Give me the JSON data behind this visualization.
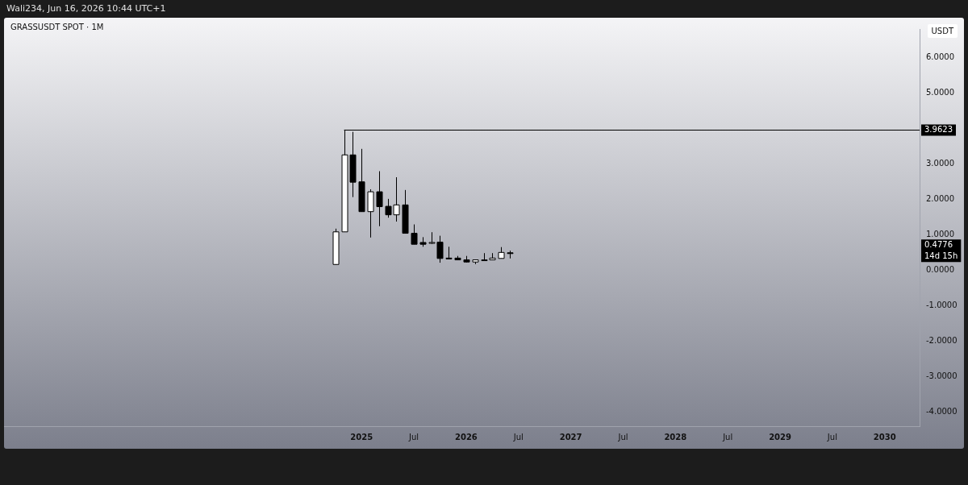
{
  "chart_data": {
    "type": "candlestick",
    "title": "GRASSUSDT SPOT · 1M",
    "ylabel": "USDT",
    "annotations": [
      "Wali234, Jun 16, 2026 10:44 UTC+1",
      "0.4776",
      "14d 15h"
    ],
    "x": [
      "2024-10",
      "2024-11",
      "2024-12",
      "2025-01",
      "2025-02",
      "2025-03",
      "2025-04",
      "2025-05",
      "2025-06",
      "2025-07",
      "2025-08",
      "2025-09",
      "2025-10",
      "2025-11",
      "2025-12",
      "2026-01",
      "2026-02",
      "2026-03",
      "2026-04",
      "2026-05",
      "2026-06"
    ],
    "ohlc": [
      [
        0.16,
        1.17,
        0.15,
        1.08
      ],
      [
        1.08,
        3.9623,
        1.08,
        3.25
      ],
      [
        3.25,
        3.9,
        2.06,
        2.48
      ],
      [
        2.49,
        3.42,
        1.65,
        1.65
      ],
      [
        1.65,
        2.28,
        0.92,
        2.21
      ],
      [
        2.21,
        2.79,
        1.24,
        1.79
      ],
      [
        1.8,
        2.01,
        1.48,
        1.56
      ],
      [
        1.56,
        2.62,
        1.37,
        1.84
      ],
      [
        1.84,
        2.26,
        1.04,
        1.04
      ],
      [
        1.04,
        1.29,
        0.73,
        0.73
      ],
      [
        0.78,
        0.93,
        0.66,
        0.73
      ],
      [
        0.76,
        1.07,
        0.74,
        0.78
      ],
      [
        0.79,
        0.97,
        0.21,
        0.33
      ],
      [
        0.34,
        0.66,
        0.32,
        0.33
      ],
      [
        0.34,
        0.4,
        0.28,
        0.29
      ],
      [
        0.29,
        0.4,
        0.22,
        0.23
      ],
      [
        0.23,
        0.3,
        0.17,
        0.29
      ],
      [
        0.28,
        0.48,
        0.27,
        0.29
      ],
      [
        0.29,
        0.48,
        0.28,
        0.34
      ],
      [
        0.33,
        0.65,
        0.33,
        0.5
      ],
      [
        0.49,
        0.55,
        0.33,
        0.4776
      ]
    ],
    "xlim": [
      "2021-08",
      "2030-05"
    ],
    "xticks": [
      {
        "value": "2025-01",
        "label": "2025"
      },
      {
        "value": "2025-07",
        "label": "Jul"
      },
      {
        "value": "2026-01",
        "label": "2026"
      },
      {
        "value": "2026-07",
        "label": "Jul"
      },
      {
        "value": "2027-01",
        "label": "2027"
      },
      {
        "value": "2027-07",
        "label": "Jul"
      },
      {
        "value": "2028-01",
        "label": "2028"
      },
      {
        "value": "2028-07",
        "label": "Jul"
      },
      {
        "value": "2029-01",
        "label": "2029"
      },
      {
        "value": "2029-07",
        "label": "Jul"
      },
      {
        "value": "2030-01",
        "label": "2030"
      }
    ],
    "ylim": [
      -4.4,
      6.8
    ],
    "yticks": [
      {
        "value": -4,
        "label": "-4.0000"
      },
      {
        "value": -3,
        "label": "-3.0000"
      },
      {
        "value": -2,
        "label": "-2.0000"
      },
      {
        "value": -1,
        "label": "-1.0000"
      },
      {
        "value": 0,
        "label": "0.0000"
      },
      {
        "value": 1,
        "label": "1.0000"
      },
      {
        "value": 2,
        "label": "2.0000"
      },
      {
        "value": 3,
        "label": "3.0000"
      },
      {
        "value": 5,
        "label": "5.0000"
      },
      {
        "value": 6,
        "label": "6.0000"
      }
    ],
    "ref_lines": [
      {
        "axis": "y",
        "value": 3.9623,
        "label": "3.9623",
        "color": "#000000"
      }
    ],
    "grid": false,
    "legend": false
  }
}
